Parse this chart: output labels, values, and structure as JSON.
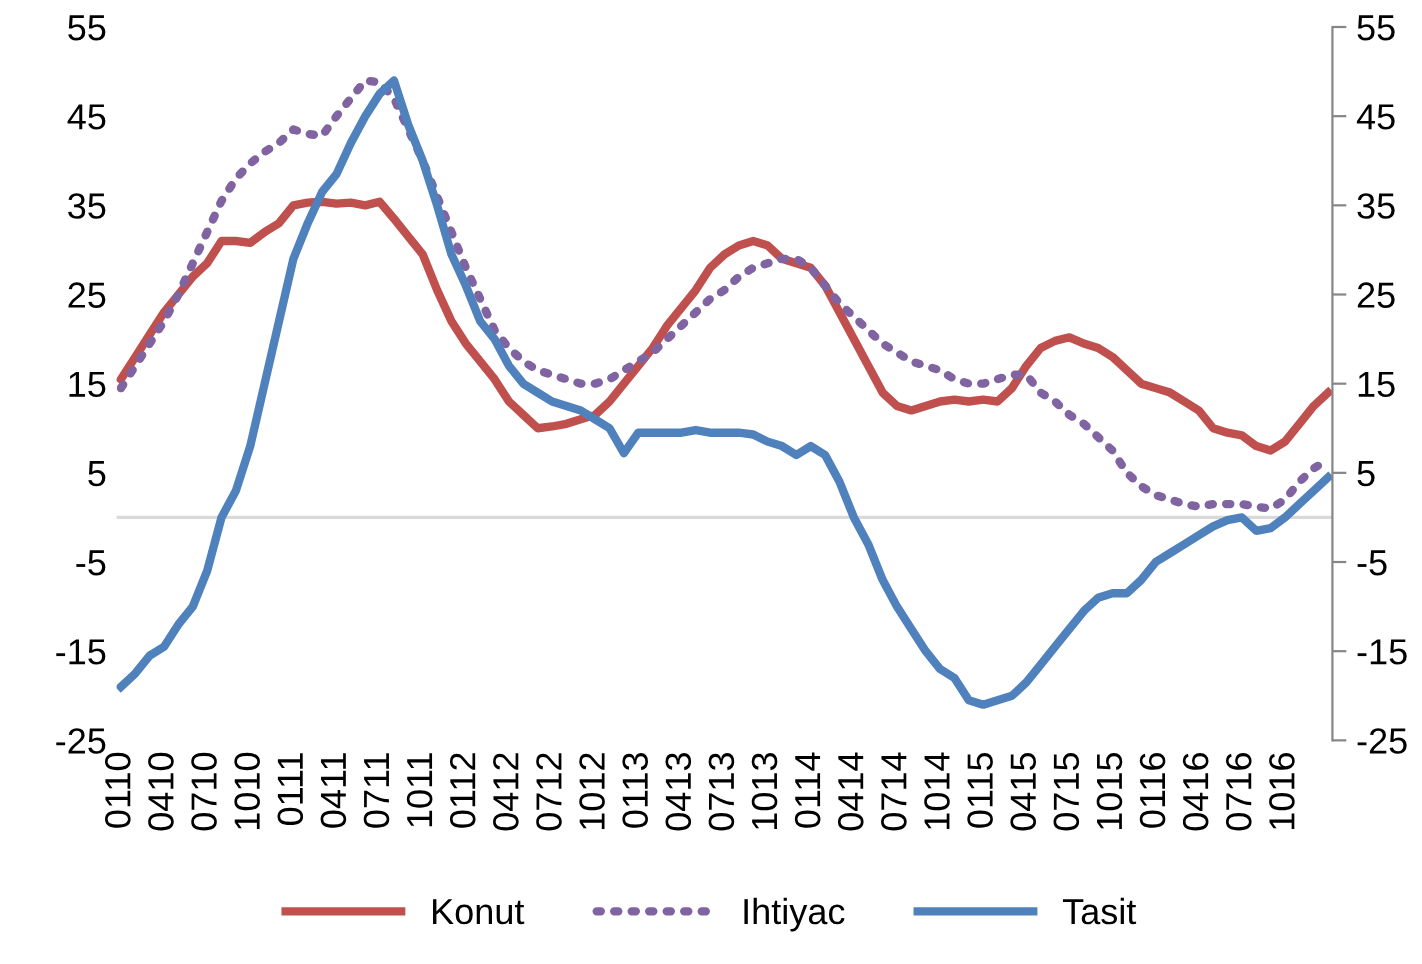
{
  "chart_data": {
    "type": "line",
    "categories": [
      "0110",
      null,
      null,
      "0410",
      null,
      null,
      "0710",
      null,
      null,
      "1010",
      null,
      null,
      "0111",
      null,
      null,
      "0411",
      null,
      null,
      "0711",
      null,
      null,
      "1011",
      null,
      null,
      "0112",
      null,
      null,
      "0412",
      null,
      null,
      "0712",
      null,
      null,
      "1012",
      null,
      null,
      "0113",
      null,
      null,
      "0413",
      null,
      null,
      "0713",
      null,
      null,
      "1013",
      null,
      null,
      "0114",
      null,
      null,
      "0414",
      null,
      null,
      "0714",
      null,
      null,
      "1014",
      null,
      null,
      "0115",
      null,
      null,
      "0415",
      null,
      null,
      "0715",
      null,
      null,
      "1015",
      null,
      null,
      "0116",
      null,
      null,
      "0416",
      null,
      null,
      "0716",
      null,
      null,
      "1016",
      null,
      null,
      null
    ],
    "series": [
      {
        "name": "Konut",
        "color": "#c0504d",
        "line_style": "solid",
        "values": [
          15.5,
          18,
          20.5,
          23,
          25,
          27,
          28.5,
          31,
          31,
          30.8,
          32,
          33,
          35,
          35.3,
          35.4,
          35.2,
          35.3,
          35,
          35.4,
          33.5,
          31.5,
          29.5,
          25.5,
          22,
          19.5,
          17.5,
          15.5,
          13,
          11.5,
          10,
          10.2,
          10.5,
          11,
          11.5,
          13,
          15,
          17,
          19,
          21.5,
          23.5,
          25.5,
          28,
          29.5,
          30.5,
          31,
          30.5,
          29,
          28.5,
          28,
          26,
          23,
          20,
          17,
          14,
          12.5,
          12,
          12.5,
          13,
          13.2,
          13,
          13.2,
          13,
          14.5,
          17,
          19,
          19.8,
          20.2,
          19.5,
          19,
          18,
          16.5,
          15,
          14.5,
          14,
          13,
          12,
          10,
          9.5,
          9.2,
          8,
          7.5,
          8.5,
          10.5,
          12.5,
          14
        ]
      },
      {
        "name": "Ihtiyac",
        "color": "#8064a2",
        "line_style": "dotted",
        "values": [
          14.5,
          17,
          19.5,
          22,
          25,
          28.5,
          32,
          35.5,
          38,
          39.7,
          41,
          42,
          43.5,
          43,
          42.8,
          45,
          47,
          49,
          48.8,
          47,
          43.5,
          40,
          36,
          32,
          28,
          24.5,
          21,
          19,
          17.5,
          16.5,
          16,
          15.5,
          15,
          15,
          15.5,
          16.5,
          17.5,
          18.5,
          20,
          21.5,
          23,
          24.5,
          25.5,
          27,
          28,
          28.5,
          29,
          29,
          28,
          26,
          24,
          22.5,
          21,
          19.5,
          18.5,
          17.5,
          17,
          16.5,
          15.5,
          15,
          15,
          15.5,
          16,
          16,
          14,
          13,
          11.5,
          10.5,
          9,
          7.5,
          5,
          3.5,
          2.5,
          2,
          1.5,
          1.2,
          1.5,
          1.5,
          1.5,
          1.2,
          1,
          2,
          4,
          5.5,
          6.5
        ]
      },
      {
        "name": "Tasit",
        "color": "#4f81bd",
        "line_style": "solid",
        "values": [
          -19,
          -17.5,
          -15.5,
          -14.5,
          -12,
          -10,
          -6,
          0,
          3,
          8,
          15,
          22,
          29,
          33,
          36.5,
          38.5,
          42,
          45,
          47.5,
          49,
          44,
          40,
          35,
          29.5,
          26,
          22,
          20,
          17,
          15,
          14,
          13,
          12.5,
          12,
          11,
          10,
          7.2,
          9.5,
          9.5,
          9.5,
          9.5,
          9.8,
          9.5,
          9.5,
          9.5,
          9.3,
          8.5,
          8,
          7,
          8,
          7,
          4,
          0,
          -3,
          -7,
          -10,
          -12.5,
          -15,
          -17,
          -18,
          -20.5,
          -21,
          -20.5,
          -20,
          -18.5,
          -16.5,
          -14.5,
          -12.5,
          -10.5,
          -9,
          -8.5,
          -8.5,
          -7,
          -5,
          -4,
          -3,
          -2,
          -1,
          -0.3,
          0,
          -1.5,
          -1.2,
          0,
          1.5,
          3,
          4.5
        ]
      }
    ],
    "ylim": [
      -25,
      55
    ],
    "yticks": [
      -25,
      -15,
      -5,
      5,
      15,
      25,
      35,
      45,
      55
    ],
    "y2lim": [
      -25,
      55
    ],
    "y2ticks": [
      -25,
      -15,
      -5,
      5,
      15,
      25,
      35,
      45,
      55
    ],
    "ref_lines": [
      {
        "axis": "y",
        "value": 0,
        "color": "#d9d9d9"
      }
    ],
    "grid": false,
    "legend": "bottom",
    "marker": "none"
  }
}
